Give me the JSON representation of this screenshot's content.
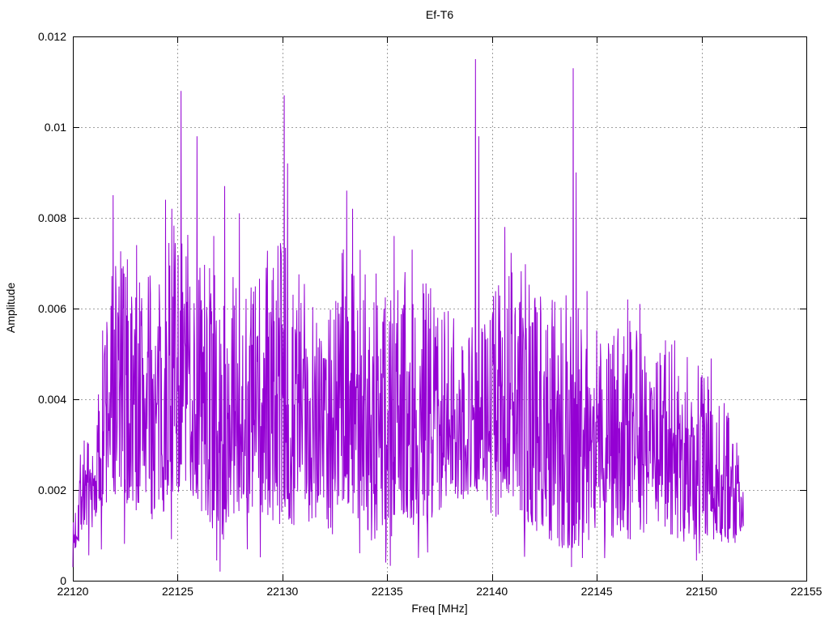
{
  "chart_data": {
    "type": "line",
    "title": "Ef-T6",
    "xlabel": "Freq [MHz]",
    "ylabel": "Amplitude",
    "xlim": [
      22120,
      22155
    ],
    "ylim": [
      0,
      0.012
    ],
    "grid": true,
    "legend": "none",
    "line_color": "#9400d3",
    "grid_color": "#a0a0a0",
    "axis_color": "#000000",
    "x_ticks": [
      {
        "v": 22120,
        "label": "22120"
      },
      {
        "v": 22125,
        "label": "22125"
      },
      {
        "v": 22130,
        "label": "22130"
      },
      {
        "v": 22135,
        "label": "22135"
      },
      {
        "v": 22140,
        "label": "22140"
      },
      {
        "v": 22145,
        "label": "22145"
      },
      {
        "v": 22150,
        "label": "22150"
      },
      {
        "v": 22155,
        "label": "22155"
      }
    ],
    "y_ticks": [
      {
        "v": 0,
        "label": "0"
      },
      {
        "v": 0.002,
        "label": "0.002"
      },
      {
        "v": 0.004,
        "label": "0.004"
      },
      {
        "v": 0.006,
        "label": "0.006"
      },
      {
        "v": 0.008,
        "label": "0.008"
      },
      {
        "v": 0.01,
        "label": "0.01"
      },
      {
        "v": 0.012,
        "label": "0.012"
      }
    ],
    "series_x_range": [
      22120,
      22152
    ],
    "note": "Dense noise spectrum; per-sample values not resolvable from image. Envelope [x, low, high] and major peaks read from plot.",
    "noise": {
      "seed": 7,
      "n_points": 1600,
      "low_bias": 1.25,
      "dip_prob": 0.012,
      "envelope": [
        [
          22120.0,
          0.0003,
          0.0012
        ],
        [
          22120.4,
          0.001,
          0.0035
        ],
        [
          22121.0,
          0.0012,
          0.0028
        ],
        [
          22121.6,
          0.0015,
          0.0068
        ],
        [
          22122.2,
          0.0018,
          0.0077
        ],
        [
          22122.8,
          0.0014,
          0.007
        ],
        [
          22123.4,
          0.0016,
          0.0072
        ],
        [
          22124.0,
          0.0012,
          0.0062
        ],
        [
          22124.6,
          0.0018,
          0.008
        ],
        [
          22125.3,
          0.002,
          0.0078
        ],
        [
          22126.0,
          0.0015,
          0.0074
        ],
        [
          22126.6,
          0.001,
          0.0073
        ],
        [
          22127.1,
          0.0008,
          0.006
        ],
        [
          22127.7,
          0.0015,
          0.0068
        ],
        [
          22128.3,
          0.0014,
          0.007
        ],
        [
          22129.0,
          0.001,
          0.007
        ],
        [
          22129.7,
          0.0012,
          0.0077
        ],
        [
          22130.3,
          0.0012,
          0.0074
        ],
        [
          22131.0,
          0.0012,
          0.0068
        ],
        [
          22131.7,
          0.0014,
          0.0069
        ],
        [
          22132.4,
          0.001,
          0.0066
        ],
        [
          22133.0,
          0.0018,
          0.0075
        ],
        [
          22133.7,
          0.0012,
          0.0077
        ],
        [
          22134.4,
          0.0008,
          0.0069
        ],
        [
          22135.1,
          0.0006,
          0.0075
        ],
        [
          22135.8,
          0.0014,
          0.0069
        ],
        [
          22136.5,
          0.001,
          0.0068
        ],
        [
          22137.2,
          0.0014,
          0.0065
        ],
        [
          22138.0,
          0.0018,
          0.006
        ],
        [
          22138.8,
          0.0018,
          0.0059
        ],
        [
          22139.5,
          0.0016,
          0.0062
        ],
        [
          22140.2,
          0.0014,
          0.0065
        ],
        [
          22140.9,
          0.0018,
          0.0074
        ],
        [
          22141.6,
          0.001,
          0.007
        ],
        [
          22142.3,
          0.0011,
          0.0064
        ],
        [
          22143.0,
          0.0008,
          0.0067
        ],
        [
          22143.8,
          0.0006,
          0.0063
        ],
        [
          22144.6,
          0.0008,
          0.0068
        ],
        [
          22145.4,
          0.001,
          0.0058
        ],
        [
          22146.2,
          0.0008,
          0.006
        ],
        [
          22147.0,
          0.001,
          0.0056
        ],
        [
          22147.8,
          0.0012,
          0.0054
        ],
        [
          22148.6,
          0.001,
          0.0055
        ],
        [
          22149.4,
          0.0008,
          0.0049
        ],
        [
          22150.2,
          0.001,
          0.0047
        ],
        [
          22151.0,
          0.0008,
          0.0041
        ],
        [
          22151.6,
          0.0008,
          0.0033
        ],
        [
          22152.0,
          0.0012,
          0.0024
        ]
      ]
    },
    "major_peaks": [
      [
        22121.93,
        0.0085
      ],
      [
        22123.05,
        0.0074
      ],
      [
        22124.42,
        0.0084
      ],
      [
        22124.72,
        0.0082
      ],
      [
        22125.17,
        0.0108
      ],
      [
        22125.92,
        0.0098
      ],
      [
        22126.72,
        0.0076
      ],
      [
        22127.25,
        0.0087
      ],
      [
        22127.95,
        0.0081
      ],
      [
        22130.08,
        0.0107
      ],
      [
        22130.25,
        0.0092
      ],
      [
        22133.06,
        0.0086
      ],
      [
        22133.35,
        0.0082
      ],
      [
        22135.32,
        0.0076
      ],
      [
        22136.2,
        0.0073
      ],
      [
        22139.22,
        0.0115
      ],
      [
        22139.38,
        0.0098
      ],
      [
        22140.62,
        0.0078
      ],
      [
        22143.87,
        0.0113
      ],
      [
        22144.02,
        0.009
      ],
      [
        22146.48,
        0.0062
      ],
      [
        22147.05,
        0.0061
      ],
      [
        22150.45,
        0.0049
      ]
    ],
    "dips": [
      [
        22120.0,
        0.0003
      ],
      [
        22127.02,
        0.0002
      ],
      [
        22134.92,
        0.0004
      ],
      [
        22144.32,
        0.0005
      ],
      [
        22149.9,
        0.0006
      ]
    ]
  }
}
